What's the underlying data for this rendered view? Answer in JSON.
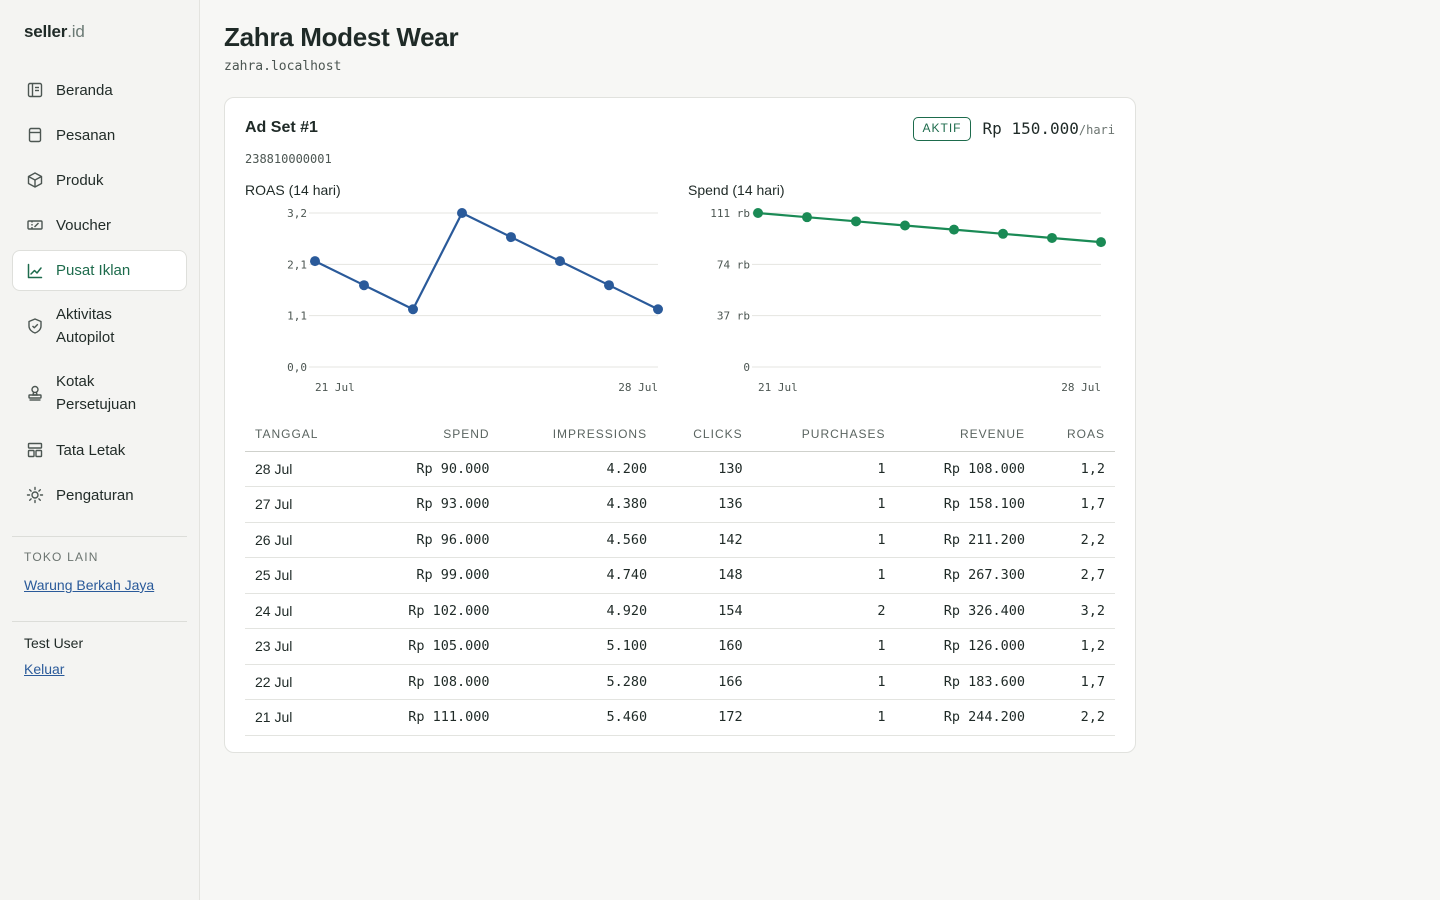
{
  "sidebar": {
    "brand_main": "seller",
    "brand_suffix": ".id",
    "items": [
      {
        "label": "Beranda",
        "icon": "home-icon"
      },
      {
        "label": "Pesanan",
        "icon": "orders-icon"
      },
      {
        "label": "Produk",
        "icon": "box-icon"
      },
      {
        "label": "Voucher",
        "icon": "ticket-icon"
      },
      {
        "label": "Pusat Iklan",
        "icon": "chart-line-icon"
      },
      {
        "label": "Aktivitas Autopilot",
        "icon": "shield-check-icon"
      },
      {
        "label": "Kotak Persetujuan",
        "icon": "stamp-icon"
      },
      {
        "label": "Tata Letak",
        "icon": "layout-icon"
      },
      {
        "label": "Pengaturan",
        "icon": "sun-gear-icon"
      }
    ],
    "active_item": "Pusat Iklan",
    "other_stores_title": "TOKO LAIN",
    "other_store_link": "Warung Berkah Jaya",
    "user_name": "Test User",
    "logout_label": "Keluar"
  },
  "header": {
    "title": "Zahra Modest Wear",
    "subtitle": "zahra.localhost"
  },
  "adset": {
    "title": "Ad Set #1",
    "id": "238810000001",
    "status": "AKTIF",
    "budget": "Rp 150.000",
    "budget_unit": "/hari"
  },
  "chart_data": [
    {
      "type": "line",
      "title": "ROAS (14 hari)",
      "x_tick_labels": [
        "21 Jul",
        "28 Jul"
      ],
      "y_tick_labels": [
        "0,0",
        "1,1",
        "2,1",
        "3,2"
      ],
      "ylim": [
        0,
        3.2
      ],
      "grid": true,
      "color": "#2a5a9a",
      "x": [
        "21 Jul",
        "22 Jul",
        "23 Jul",
        "24 Jul",
        "25 Jul",
        "26 Jul",
        "27 Jul",
        "28 Jul"
      ],
      "values": [
        2.2,
        1.7,
        1.2,
        3.2,
        2.7,
        2.2,
        1.7,
        1.2
      ]
    },
    {
      "type": "line",
      "title": "Spend (14 hari)",
      "x_tick_labels": [
        "21 Jul",
        "28 Jul"
      ],
      "y_tick_labels": [
        "0",
        "37 rb",
        "74 rb",
        "111 rb"
      ],
      "ylim": [
        0,
        111000
      ],
      "grid": true,
      "color": "#1a8a55",
      "x": [
        "21 Jul",
        "22 Jul",
        "23 Jul",
        "24 Jul",
        "25 Jul",
        "26 Jul",
        "27 Jul",
        "28 Jul"
      ],
      "values": [
        111000,
        108000,
        105000,
        102000,
        99000,
        96000,
        93000,
        90000
      ]
    }
  ],
  "table": {
    "columns": [
      "TANGGAL",
      "SPEND",
      "IMPRESSIONS",
      "CLICKS",
      "PURCHASES",
      "REVENUE",
      "ROAS"
    ],
    "rows": [
      [
        "28 Jul",
        "Rp 90.000",
        "4.200",
        "130",
        "1",
        "Rp 108.000",
        "1,2"
      ],
      [
        "27 Jul",
        "Rp 93.000",
        "4.380",
        "136",
        "1",
        "Rp 158.100",
        "1,7"
      ],
      [
        "26 Jul",
        "Rp 96.000",
        "4.560",
        "142",
        "1",
        "Rp 211.200",
        "2,2"
      ],
      [
        "25 Jul",
        "Rp 99.000",
        "4.740",
        "148",
        "1",
        "Rp 267.300",
        "2,7"
      ],
      [
        "24 Jul",
        "Rp 102.000",
        "4.920",
        "154",
        "2",
        "Rp 326.400",
        "3,2"
      ],
      [
        "23 Jul",
        "Rp 105.000",
        "5.100",
        "160",
        "1",
        "Rp 126.000",
        "1,2"
      ],
      [
        "22 Jul",
        "Rp 108.000",
        "5.280",
        "166",
        "1",
        "Rp 183.600",
        "1,7"
      ],
      [
        "21 Jul",
        "Rp 111.000",
        "5.460",
        "172",
        "1",
        "Rp 244.200",
        "2,2"
      ]
    ]
  }
}
